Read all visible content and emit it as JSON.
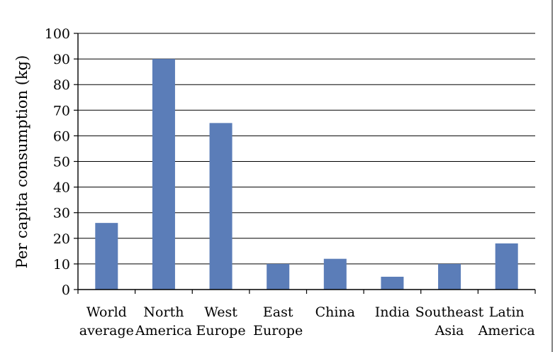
{
  "chart_data": {
    "type": "bar",
    "categories": [
      [
        "World",
        "average"
      ],
      [
        "North",
        "America"
      ],
      [
        "West",
        "Europe"
      ],
      [
        "East",
        "Europe"
      ],
      [
        "China"
      ],
      [
        "India"
      ],
      [
        "Southeast",
        "Asia"
      ],
      [
        "Latin",
        "America"
      ]
    ],
    "values": [
      26,
      90,
      65,
      10,
      12,
      5,
      10,
      18
    ],
    "title": "",
    "xlabel": "",
    "ylabel": "Per capita consumption (kg)",
    "ylim": [
      0,
      100
    ],
    "yticks": [
      0,
      10,
      20,
      30,
      40,
      50,
      60,
      70,
      80,
      90,
      100
    ],
    "grid": "horizontal",
    "bar_color": "#5b7db8"
  }
}
